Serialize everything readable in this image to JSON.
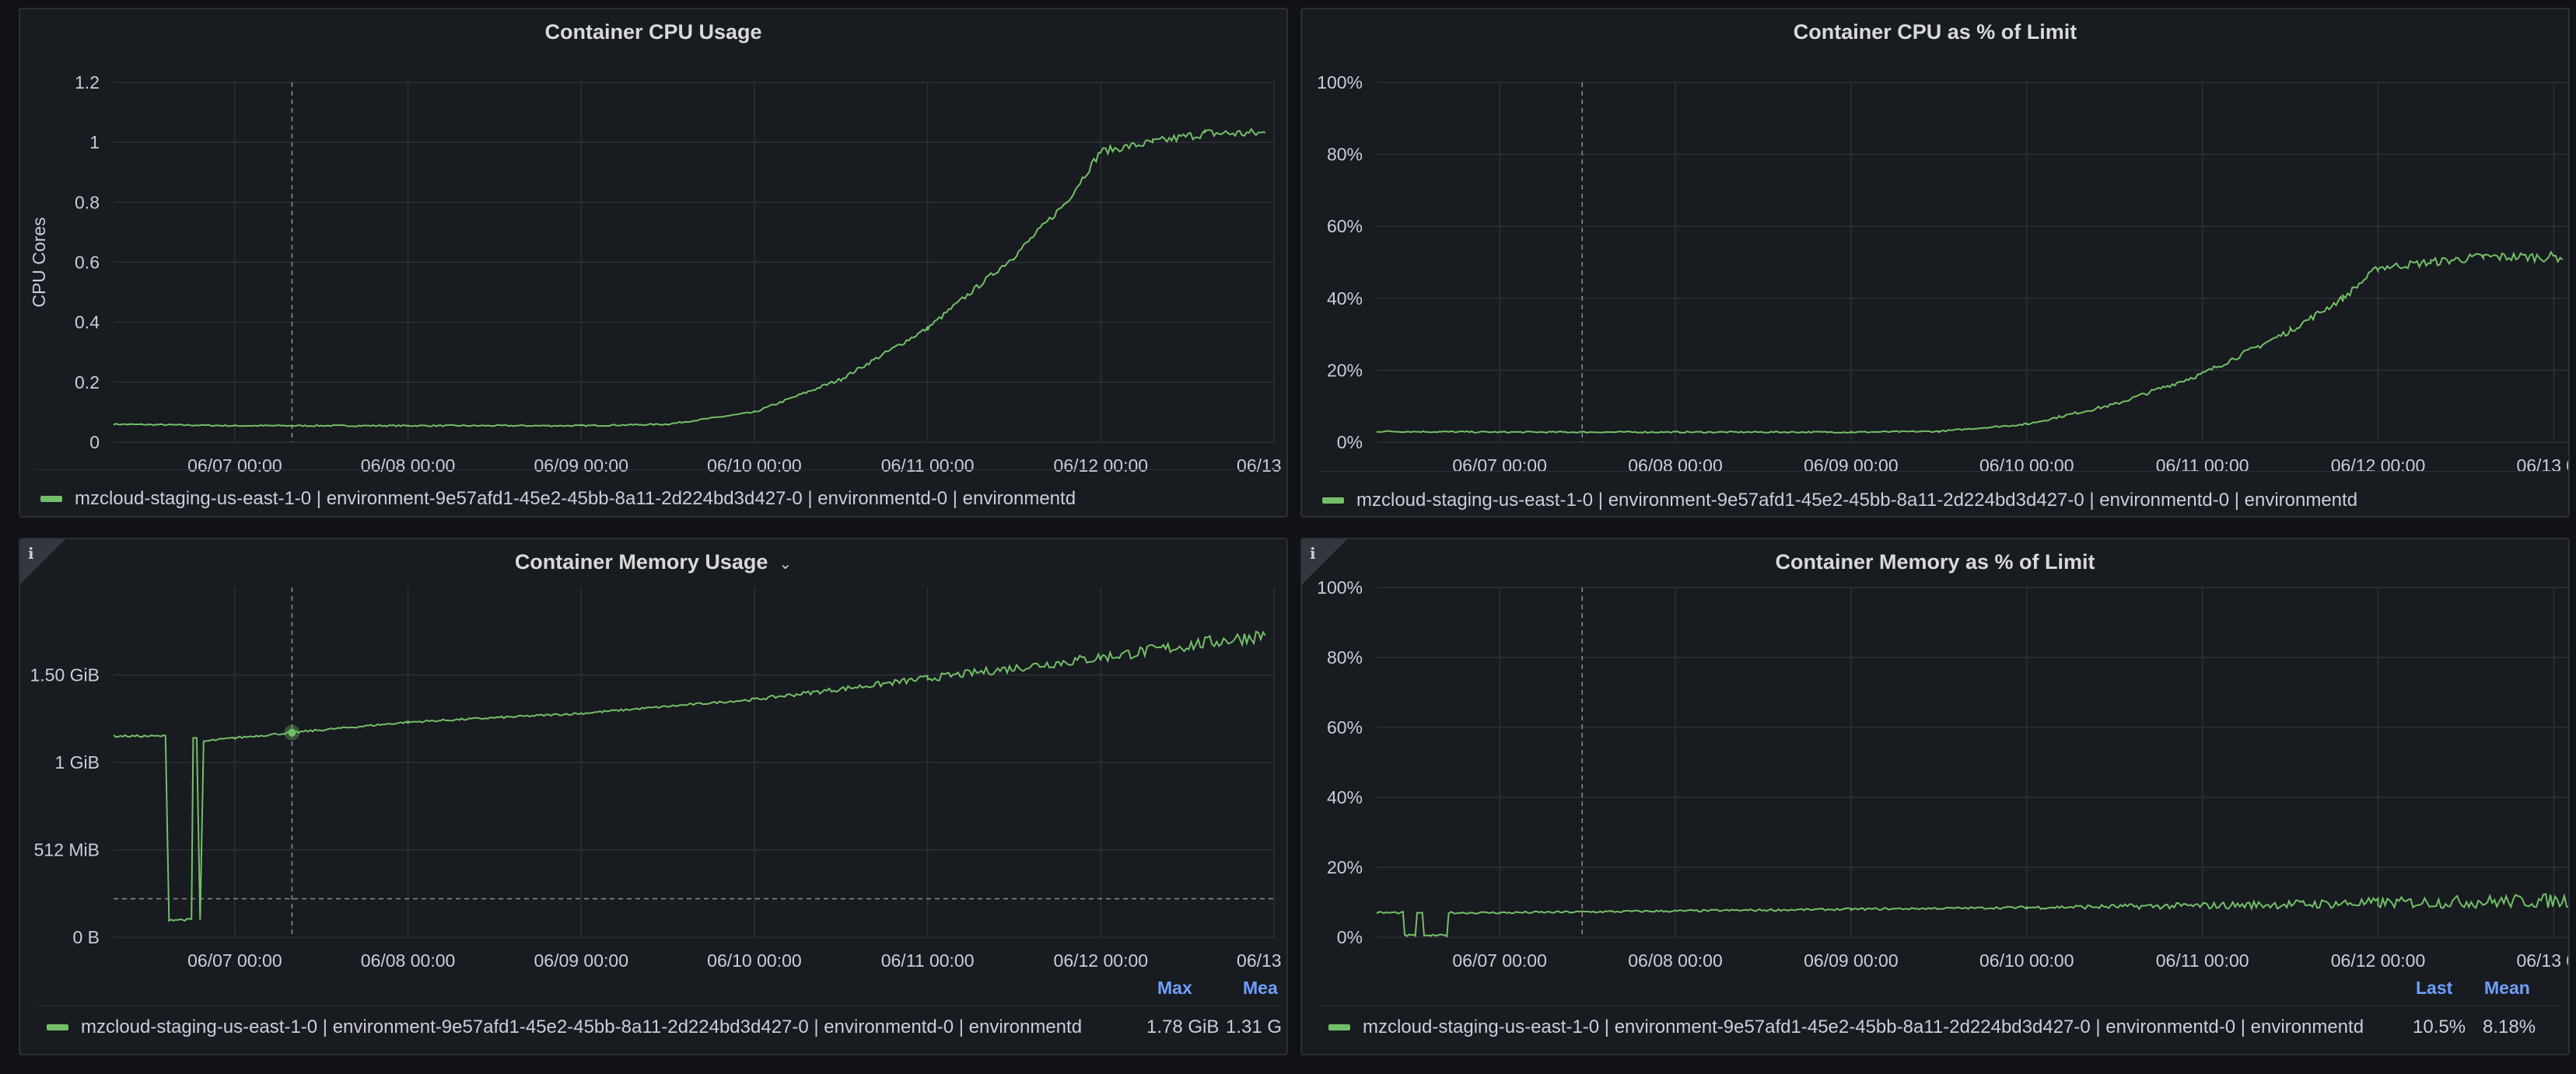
{
  "colors": {
    "series": "#73bf69",
    "grid": "#2c2f36",
    "axis_text": "#ccccdc",
    "crosshair": "#8e8e8e",
    "legend_header": "#6e9fff"
  },
  "legend_series": "mzcloud-staging-us-east-1-0 | environment-9e57afd1-45e2-45bb-8a11-2d224bd3d427-0 | environmentd-0 | environmentd",
  "panels": {
    "cpu": {
      "title": "Container CPU Usage",
      "info_icon": false
    },
    "cpu_pct": {
      "title": "Container CPU as % of Limit",
      "info_icon": false
    },
    "mem": {
      "title": "Container Memory Usage",
      "menu_icon": "chevron-down-icon",
      "info_icon": true,
      "legend_headers": [
        "Max",
        "Mea"
      ],
      "legend_values": [
        "1.78 GiB",
        "1.31 G"
      ]
    },
    "mem_pct": {
      "title": "Container Memory as % of Limit",
      "info_icon": true,
      "legend_headers": [
        "Last",
        "Mean"
      ],
      "legend_values": [
        "10.5%",
        "8.18%"
      ]
    }
  },
  "chart_data": [
    {
      "id": "cpu",
      "type": "line",
      "title": "Container CPU Usage",
      "ylabel": "CPU Cores",
      "xlabel": "",
      "x_ticks": [
        "06/07 00:00",
        "06/08 00:00",
        "06/09 00:00",
        "06/10 00:00",
        "06/11 00:00",
        "06/12 00:00",
        "06/13 00:"
      ],
      "y_ticks": [
        "0",
        "0.2",
        "0.4",
        "0.6",
        "0.8",
        "1",
        "1.2"
      ],
      "ylim": [
        0,
        1.2
      ],
      "xlim_days": [
        6.3,
        13.0
      ],
      "grid": true,
      "legend": "bottom",
      "series": [
        {
          "name": "mzcloud-staging-us-east-1-0 | environment-9e57afd1-45e2-45bb-8a11-2d224bd3d427-0 | environmentd-0 | environmentd",
          "x_days": [
            6.3,
            7.0,
            8.0,
            9.0,
            9.5,
            10.0,
            10.5,
            11.0,
            11.5,
            11.8,
            12.0,
            12.3,
            12.6,
            12.95
          ],
          "values": [
            0.06,
            0.055,
            0.055,
            0.055,
            0.06,
            0.1,
            0.21,
            0.38,
            0.62,
            0.8,
            0.97,
            1.0,
            1.03,
            1.03
          ]
        }
      ],
      "crosshair_day": 7.33
    },
    {
      "id": "cpu_pct",
      "type": "line",
      "title": "Container CPU as % of Limit",
      "x_ticks": [
        "06/07 00:00",
        "06/08 00:00",
        "06/09 00:00",
        "06/10 00:00",
        "06/11 00:00",
        "06/12 00:00",
        "06/13 00:"
      ],
      "y_ticks": [
        "0%",
        "20%",
        "40%",
        "60%",
        "80%",
        "100%"
      ],
      "ylim": [
        0,
        100
      ],
      "xlim_days": [
        6.3,
        13.1
      ],
      "grid": true,
      "legend": "bottom",
      "series": [
        {
          "name": "mzcloud-staging-us-east-1-0 | environment-9e57afd1-45e2-45bb-8a11-2d224bd3d427-0 | environmentd-0 | environmentd",
          "x_days": [
            6.3,
            7.0,
            8.0,
            9.0,
            9.5,
            10.0,
            10.5,
            11.0,
            11.5,
            11.8,
            12.0,
            12.3,
            12.6,
            13.05
          ],
          "values": [
            3.0,
            2.8,
            2.8,
            2.8,
            3.0,
            5,
            10.5,
            19,
            31,
            40,
            48.5,
            50,
            51.5,
            51.5
          ]
        }
      ],
      "crosshair_day": 7.47
    },
    {
      "id": "mem",
      "type": "line",
      "title": "Container Memory Usage",
      "x_ticks": [
        "06/07 00:00",
        "06/08 00:00",
        "06/09 00:00",
        "06/10 00:00",
        "06/11 00:00",
        "06/12 00:00",
        "06/13 00:"
      ],
      "y_ticks": [
        "0 B",
        "512 MiB",
        "1 GiB",
        "1.50 GiB"
      ],
      "y_tick_values_gib": [
        0,
        0.5,
        1.0,
        1.5
      ],
      "ylim_gib": [
        0,
        2.0
      ],
      "xlim_days": [
        6.3,
        13.0
      ],
      "grid": true,
      "legend": "bottom",
      "threshold_gib": 0.22,
      "series": [
        {
          "name": "mzcloud-staging-us-east-1-0 | environment-9e57afd1-45e2-45bb-8a11-2d224bd3d427-0 | environmentd-0 | environmentd",
          "x_days": [
            6.3,
            6.6,
            6.62,
            6.75,
            6.76,
            6.78,
            6.8,
            6.82,
            7.0,
            7.33,
            8.0,
            9.0,
            10.0,
            11.0,
            12.0,
            12.95
          ],
          "values": [
            1.15,
            1.15,
            0.1,
            0.1,
            1.14,
            1.14,
            0.1,
            1.12,
            1.14,
            1.17,
            1.23,
            1.28,
            1.36,
            1.48,
            1.6,
            1.73
          ]
        }
      ],
      "crosshair_day": 7.33,
      "hover_value_gib": 1.17
    },
    {
      "id": "mem_pct",
      "type": "line",
      "title": "Container Memory as % of Limit",
      "x_ticks": [
        "06/07 00:00",
        "06/08 00:00",
        "06/09 00:00",
        "06/10 00:00",
        "06/11 00:00",
        "06/12 00:00",
        "06/13 00:"
      ],
      "y_ticks": [
        "0%",
        "20%",
        "40%",
        "60%",
        "80%",
        "100%"
      ],
      "ylim": [
        0,
        100
      ],
      "xlim_days": [
        6.3,
        13.1
      ],
      "grid": true,
      "legend": "bottom",
      "series": [
        {
          "name": "mzcloud-staging-us-east-1-0 | environment-9e57afd1-45e2-45bb-8a11-2d224bd3d427-0 | environmentd-0 | environmentd",
          "x_days": [
            6.3,
            6.45,
            6.46,
            6.52,
            6.53,
            6.56,
            6.57,
            6.6,
            6.61,
            6.7,
            6.71,
            7.0,
            8.0,
            9.0,
            10.0,
            11.0,
            12.0,
            13.1
          ],
          "values": [
            7,
            7,
            0.5,
            0.5,
            7,
            7,
            0.5,
            0.5,
            0.5,
            0.5,
            7,
            7,
            7.5,
            8,
            8.5,
            9,
            9.8,
            10.5
          ]
        }
      ],
      "crosshair_day": 7.47
    }
  ]
}
